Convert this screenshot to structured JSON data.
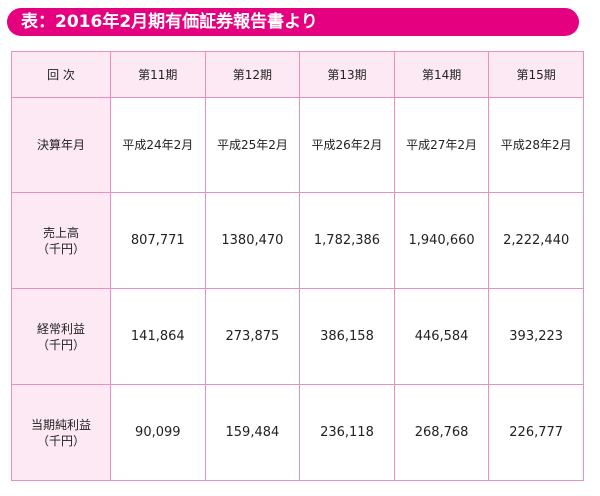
{
  "title": "表：2016年2月期有価証券報告書より",
  "header": {
    "label": "回 次",
    "periods": [
      "第11期",
      "第12期",
      "第13期",
      "第14期",
      "第15期"
    ]
  },
  "rows": [
    {
      "label_line1": "決算年月",
      "label_line2": "",
      "values": [
        "平成24年2月",
        "平成25年2月",
        "平成26年2月",
        "平成27年2月",
        "平成28年2月"
      ]
    },
    {
      "label_line1": "売上高",
      "label_line2": "（千円）",
      "values": [
        "807,771",
        "1380,470",
        "1,782,386",
        "1,940,660",
        "2,222,440"
      ]
    },
    {
      "label_line1": "経常利益",
      "label_line2": "（千円）",
      "values": [
        "141,864",
        "273,875",
        "386,158",
        "446,584",
        "393,223"
      ]
    },
    {
      "label_line1": "当期純利益",
      "label_line2": "（千円）",
      "values": [
        "90,099",
        "159,484",
        "236,118",
        "268,768",
        "226,777"
      ]
    }
  ],
  "colors": {
    "accent": "#e4007f",
    "border": "#ea8fc0",
    "header_fill": "#fde9f3"
  }
}
